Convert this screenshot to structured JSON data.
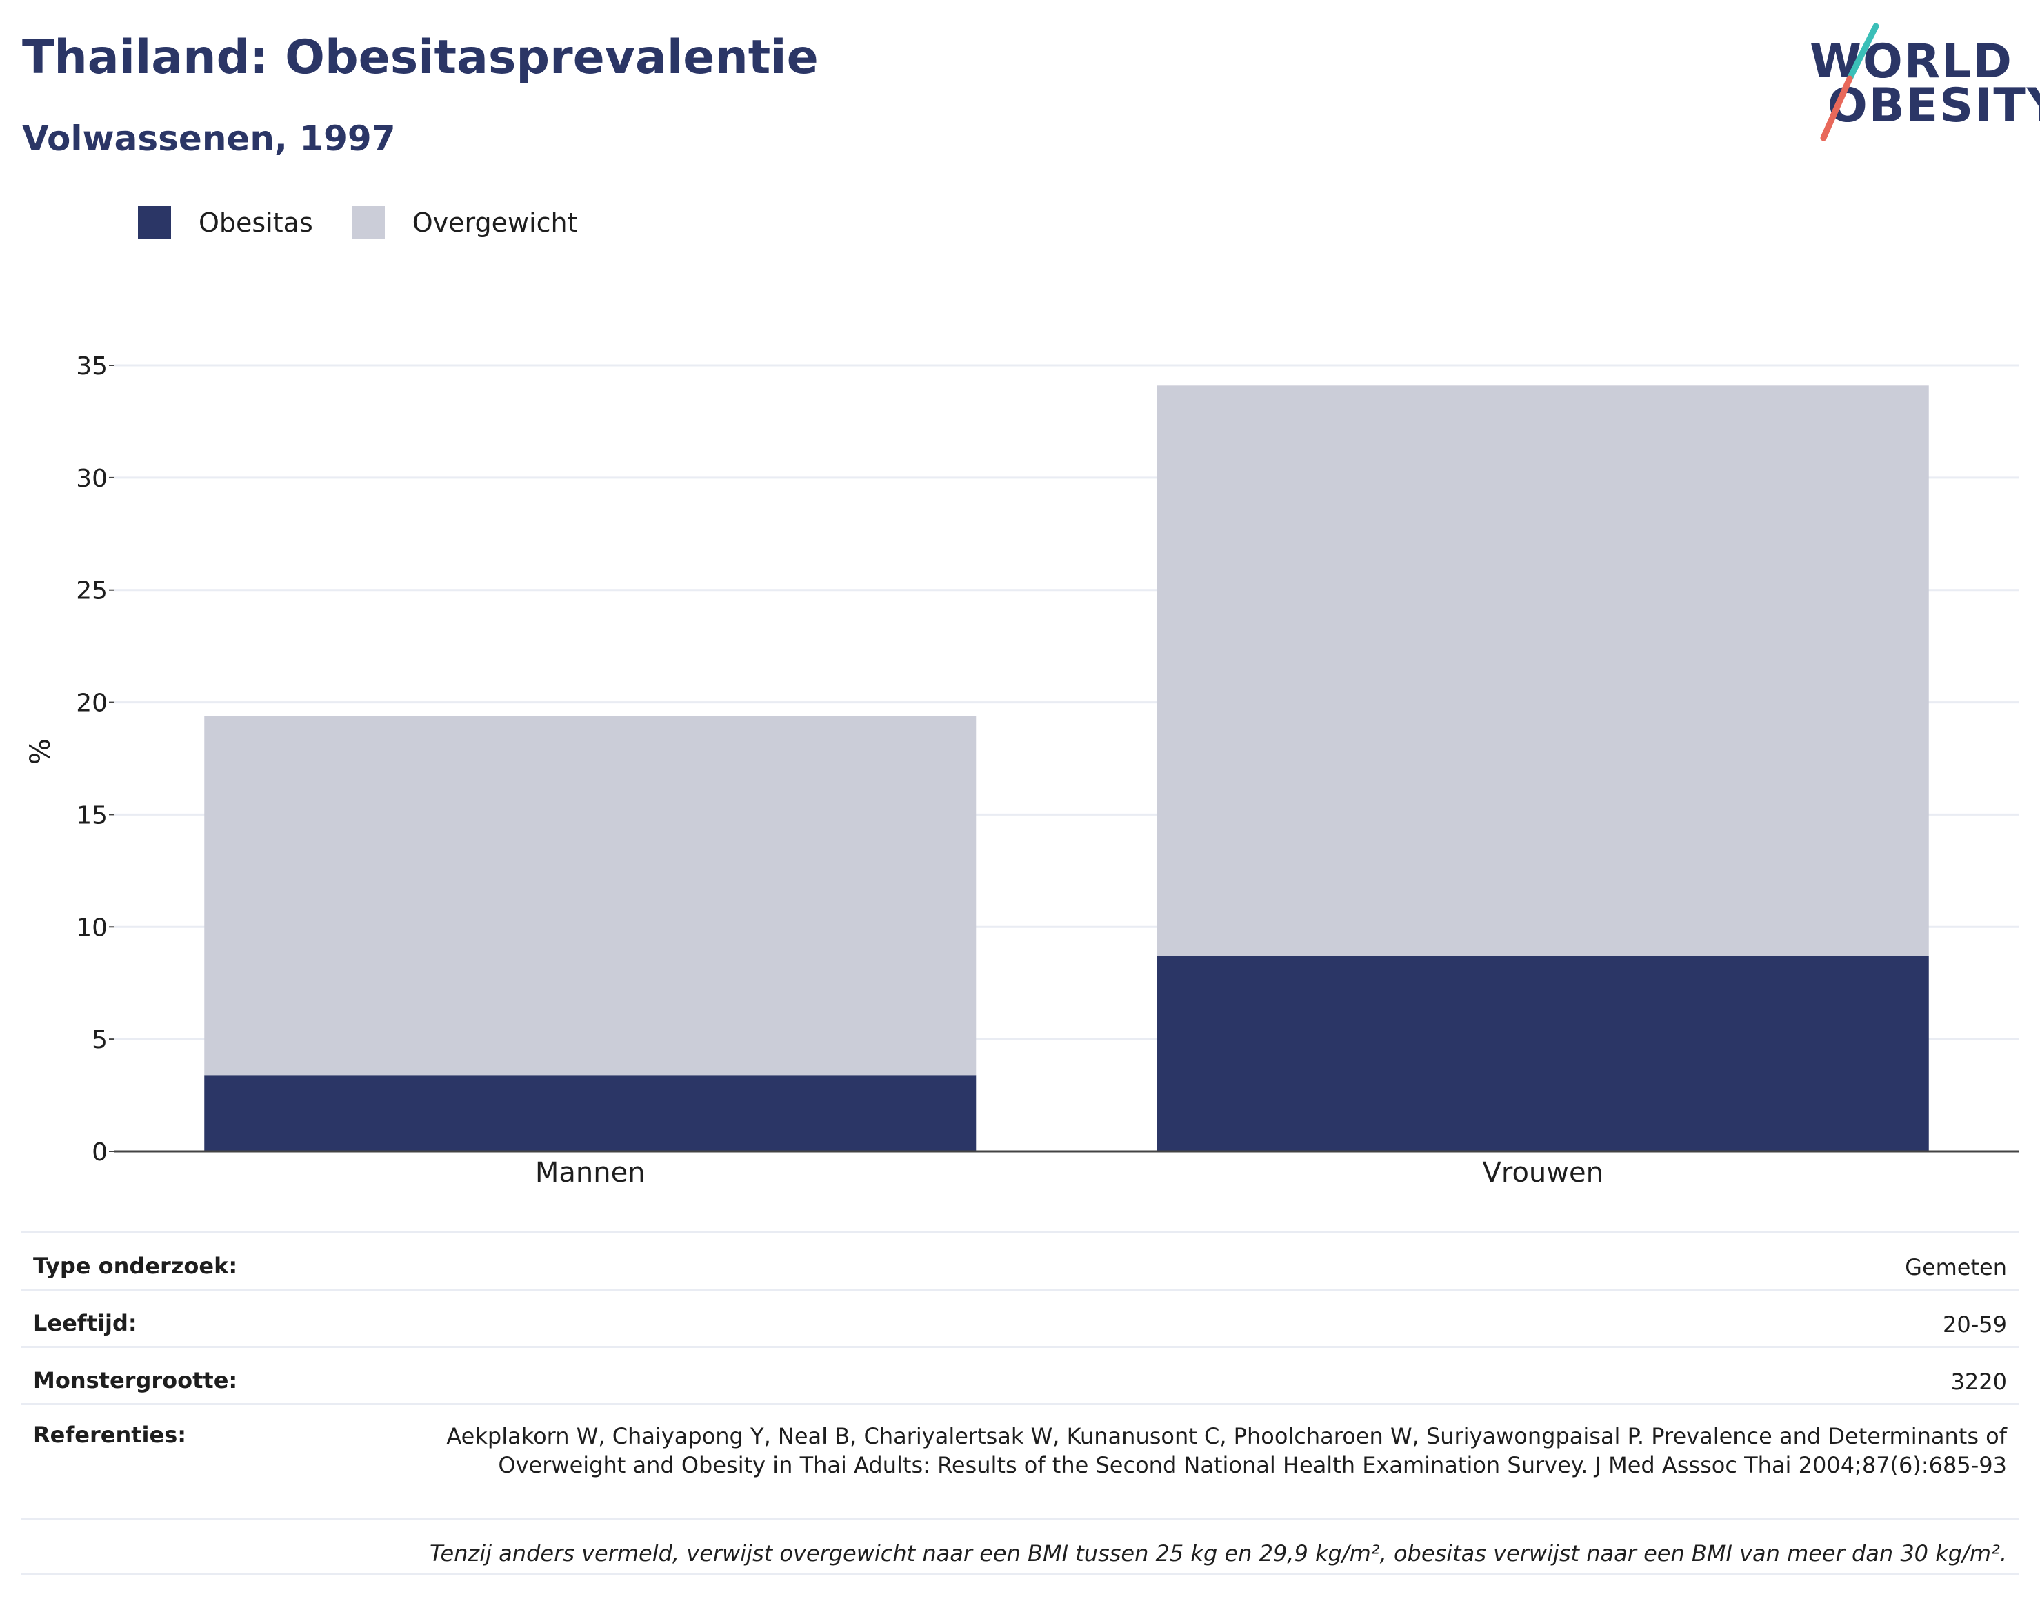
{
  "header": {
    "title": "Thailand: Obesitasprevalentie",
    "subtitle": "Volwassenen, 1997"
  },
  "logo": {
    "line1": "WORLD",
    "line2": "OBESITY",
    "colors": {
      "text": "#2b3666",
      "teal": "#3bbfb8",
      "coral": "#e8685a"
    }
  },
  "legend": [
    {
      "label": "Obesitas",
      "color": "#2b3666"
    },
    {
      "label": "Overgewicht",
      "color": "#cbcdd8"
    }
  ],
  "chart_data": {
    "type": "bar",
    "stacked": true,
    "categories": [
      "Mannen",
      "Vrouwen"
    ],
    "series": [
      {
        "name": "Obesitas",
        "values": [
          3.4,
          8.7
        ],
        "color": "#2b3666"
      },
      {
        "name": "Overgewicht",
        "values": [
          16.0,
          25.4
        ],
        "color": "#cbcdd8"
      }
    ],
    "ylabel": "%",
    "ylim": [
      0,
      35
    ],
    "yticks": [
      0,
      5,
      10,
      15,
      20,
      25,
      30,
      35
    ],
    "grid": true,
    "legend_position": "top-left"
  },
  "meta": {
    "survey_type_label": "Type onderzoek:",
    "survey_type_value": "Gemeten",
    "age_label": "Leeftijd:",
    "age_value": "20-59",
    "sample_label": "Monstergrootte:",
    "sample_value": "3220",
    "ref_label": "Referenties:",
    "ref_value": "Aekplakorn W, Chaiyapong Y, Neal B, Chariyalertsak W, Kunanusont C, Phoolcharoen W, Suriyawongpaisal P. Prevalence and Determinants of Overweight and Obesity in Thai Adults: Results of the Second National Health Examination Survey. J Med Asssoc Thai 2004;87(6):685-93",
    "note": "Tenzij anders vermeld, verwijst overgewicht naar een BMI tussen 25 kg en 29,9 kg/m², obesitas verwijst naar een BMI van meer dan 30 kg/m²."
  }
}
